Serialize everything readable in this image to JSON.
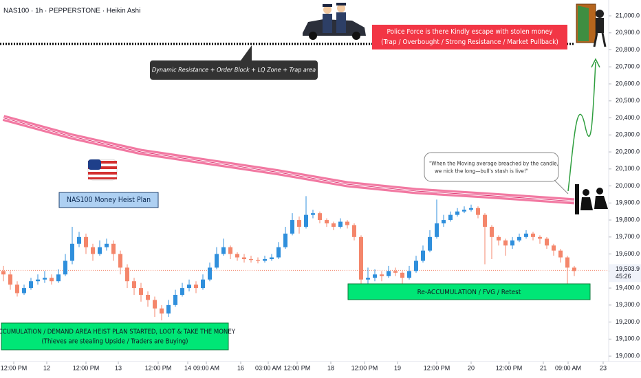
{
  "chart_data": {
    "type": "candlestick",
    "title": "NAS100 · 1h · PEPPERSTONE · Heikin Ashi",
    "up_color": "#2f8fdc",
    "down_color": "#f4866b",
    "open": [
      19500,
      19480,
      19420,
      19370,
      19400,
      19440,
      19450,
      19460,
      19440,
      19480,
      19560,
      19660,
      19700,
      19640,
      19600,
      19640,
      19660,
      19600,
      19520,
      19440,
      19400,
      19360,
      19330,
      19280,
      19250,
      19300,
      19360,
      19400,
      19420,
      19400,
      19450,
      19520,
      19600,
      19640,
      19600,
      19580,
      19570,
      19565,
      19560,
      19570,
      19580,
      19640,
      19720,
      19800,
      19760,
      19830,
      19840,
      19800,
      19780,
      19760,
      19790,
      19770,
      19700,
      19450,
      19460,
      19480,
      19470,
      19500,
      19490,
      19460,
      19500,
      19560,
      19620,
      19700,
      19780,
      19800,
      19830,
      19850,
      19860,
      19870,
      19830,
      19760,
      19700,
      19680,
      19650,
      19680,
      19700,
      19720,
      19700,
      19690,
      19650,
      19620,
      19580,
      19520
    ],
    "high": [
      19530,
      19500,
      19440,
      19420,
      19460,
      19480,
      19500,
      19480,
      19510,
      19600,
      19760,
      19730,
      19720,
      19660,
      19680,
      19690,
      19680,
      19620,
      19540,
      19460,
      19430,
      19380,
      19350,
      19300,
      19330,
      19390,
      19430,
      19450,
      19440,
      19480,
      19550,
      19640,
      19690,
      19650,
      19610,
      19600,
      19590,
      19580,
      19590,
      19600,
      19670,
      19760,
      19840,
      19820,
      19940,
      19860,
      19850,
      19810,
      19790,
      19810,
      19800,
      19780,
      19710,
      19520,
      19510,
      19500,
      19530,
      19520,
      19500,
      19530,
      19590,
      19650,
      19740,
      19920,
      19830,
      19850,
      19870,
      19880,
      19890,
      19880,
      19840,
      19770,
      19710,
      19690,
      19700,
      19720,
      19740,
      19730,
      19710,
      19700,
      19660,
      19630,
      19590,
      19530
    ],
    "low": [
      19440,
      19390,
      19350,
      19360,
      19390,
      19420,
      19430,
      19420,
      19430,
      19470,
      19540,
      19640,
      19600,
      19560,
      19590,
      19620,
      19560,
      19480,
      19400,
      19360,
      19320,
      19290,
      19230,
      19210,
      19230,
      19290,
      19350,
      19380,
      19370,
      19390,
      19440,
      19510,
      19590,
      19570,
      19560,
      19550,
      19550,
      19545,
      19550,
      19560,
      19570,
      19630,
      19710,
      19720,
      19750,
      19810,
      19780,
      19760,
      19740,
      19750,
      19750,
      19680,
      19420,
      19420,
      19440,
      19440,
      19460,
      19470,
      19420,
      19450,
      19490,
      19550,
      19610,
      19690,
      19760,
      19790,
      19820,
      19840,
      19850,
      19810,
      19540,
      19570,
      19650,
      19590,
      19630,
      19670,
      19690,
      19680,
      19660,
      19630,
      19590,
      19550,
      19420,
      19470
    ],
    "close": [
      19480,
      19420,
      19370,
      19400,
      19440,
      19450,
      19460,
      19440,
      19480,
      19560,
      19660,
      19700,
      19640,
      19600,
      19640,
      19660,
      19600,
      19520,
      19440,
      19400,
      19360,
      19330,
      19280,
      19250,
      19300,
      19360,
      19400,
      19420,
      19400,
      19450,
      19520,
      19600,
      19640,
      19600,
      19580,
      19570,
      19565,
      19560,
      19570,
      19580,
      19640,
      19720,
      19800,
      19760,
      19830,
      19840,
      19800,
      19780,
      19760,
      19790,
      19770,
      19700,
      19450,
      19460,
      19480,
      19470,
      19500,
      19490,
      19460,
      19500,
      19560,
      19620,
      19700,
      19780,
      19800,
      19830,
      19850,
      19860,
      19870,
      19830,
      19760,
      19700,
      19680,
      19650,
      19680,
      19700,
      19720,
      19700,
      19690,
      19650,
      19620,
      19580,
      19520,
      19500
    ],
    "moving_average": {
      "color": "#f06292",
      "x": [
        0,
        10,
        20,
        30,
        40,
        50,
        60,
        70,
        83
      ],
      "values": [
        20400,
        20290,
        20200,
        20140,
        20080,
        20010,
        19970,
        19945,
        19910
      ]
    },
    "resistance": 20835,
    "last_price": 19503.9,
    "last_price_label": "19,503.9",
    "countdown": "45:26",
    "ylim": [
      18952,
      21093
    ],
    "yticks": [
      {
        "value": 19000,
        "label": "19,000.0"
      },
      {
        "value": 19100,
        "label": "19,100.0"
      },
      {
        "value": 19200,
        "label": "19,200.0"
      },
      {
        "value": 19300,
        "label": "19,300.0"
      },
      {
        "value": 19400,
        "label": "19,400.0"
      },
      {
        "value": 19500,
        "label": "19,500.0"
      },
      {
        "value": 19600,
        "label": "19,600.0"
      },
      {
        "value": 19700,
        "label": "19,700.0"
      },
      {
        "value": 19800,
        "label": "19,800.0"
      },
      {
        "value": 19900,
        "label": "19,900.0"
      },
      {
        "value": 20000,
        "label": "20,000.0"
      },
      {
        "value": 20100,
        "label": "20,100.0"
      },
      {
        "value": 20200,
        "label": "20,200.0"
      },
      {
        "value": 20300,
        "label": "20,300.0"
      },
      {
        "value": 20400,
        "label": "20,400.0"
      },
      {
        "value": 20500,
        "label": "20,500.0"
      },
      {
        "value": 20600,
        "label": "20,600.0"
      },
      {
        "value": 20700,
        "label": "20,700.0"
      },
      {
        "value": 20800,
        "label": "20,800.0"
      },
      {
        "value": 20900,
        "label": "20,900.0"
      },
      {
        "value": 21000,
        "label": "21,000.0"
      }
    ],
    "xticks": [
      {
        "value": 1.5,
        "label": "12:00 PM"
      },
      {
        "value": 6.3,
        "label": "12"
      },
      {
        "value": 12,
        "label": "12:00 PM"
      },
      {
        "value": 16.7,
        "label": "13"
      },
      {
        "value": 22.5,
        "label": "12:00 PM"
      },
      {
        "value": 26.8,
        "label": "14"
      },
      {
        "value": 29.5,
        "label": "09:00 AM"
      },
      {
        "value": 34.5,
        "label": "16"
      },
      {
        "value": 38.5,
        "label": "03:00 AM"
      },
      {
        "value": 42.7,
        "label": "12:00 PM"
      },
      {
        "value": 47.6,
        "label": "18"
      },
      {
        "value": 52.5,
        "label": "12:00 PM"
      },
      {
        "value": 57.3,
        "label": "19"
      },
      {
        "value": 63,
        "label": "12:00 PM"
      },
      {
        "value": 68,
        "label": "20"
      },
      {
        "value": 73.5,
        "label": "12:00 PM"
      },
      {
        "value": 78.5,
        "label": "21"
      },
      {
        "value": 82.1,
        "label": "09:00 AM"
      },
      {
        "value": 87.2,
        "label": "23"
      }
    ],
    "annotations": {
      "resistance_note": "Dynamic Resistance + Order Block + LQ Zone + Trap area",
      "police_note": [
        "Police Force is there Kindly escape with stolen money",
        "(Trap / Overbought / Strong Resistance / Market Pullback)"
      ],
      "plan_label": "NAS100 Money Heist Plan",
      "quote": [
        "\"When the Moving average breached by the candle,",
        "we nick the long—bull's stash is live!\""
      ],
      "reaccumulation": "Re-ACCUMULATION / FVG / Retest",
      "accumulation": [
        "ACCUMULATION / DEMAND AREA HEIST PLAN STARTED, LOOT & TAKE THE MONEY",
        "(Thieves are stealing Upside / Traders are Buying)"
      ]
    }
  }
}
